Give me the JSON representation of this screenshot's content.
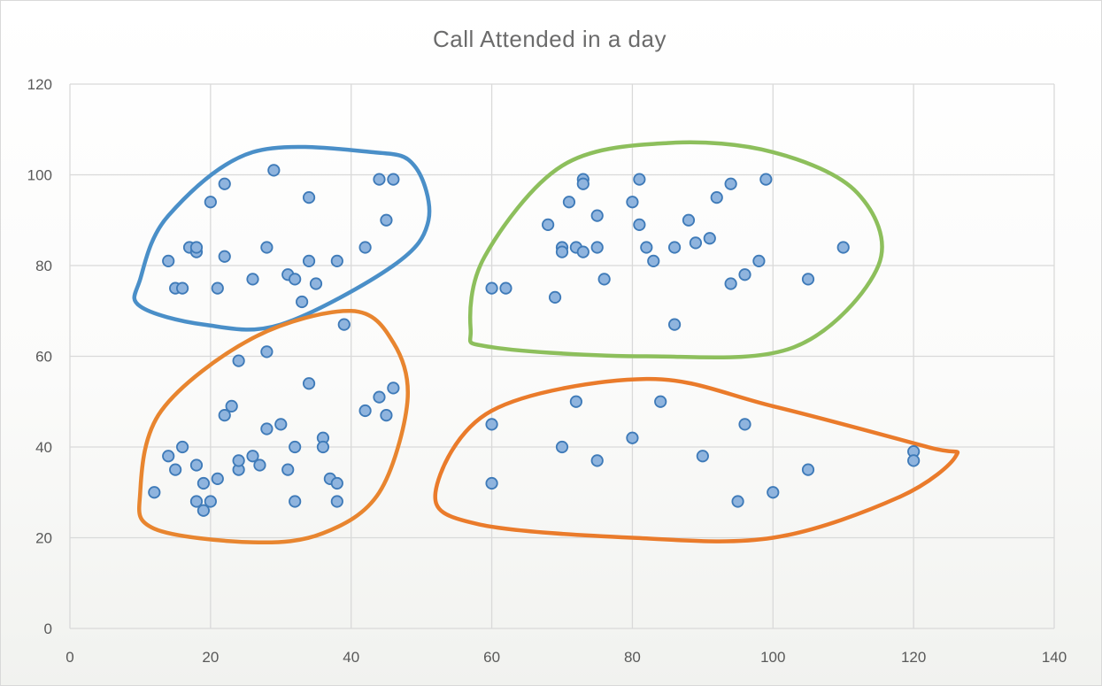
{
  "chart_data": {
    "type": "scatter",
    "title": "Call Attended in a day",
    "xlabel": "",
    "ylabel": "",
    "xlim": [
      0,
      140
    ],
    "ylim": [
      0,
      120
    ],
    "xticks": [
      0,
      20,
      40,
      60,
      80,
      100,
      120,
      140
    ],
    "yticks": [
      0,
      20,
      40,
      60,
      80,
      100,
      120
    ],
    "grid": true,
    "legend": "none",
    "marker_fill": "#8fb4de",
    "marker_edge": "#3e7ab8",
    "series": [
      {
        "points": [
          [
            14,
            81
          ],
          [
            15,
            75
          ],
          [
            16,
            75
          ],
          [
            17,
            84
          ],
          [
            18,
            83
          ],
          [
            18,
            84
          ],
          [
            20,
            94
          ],
          [
            21,
            75
          ],
          [
            22,
            98
          ],
          [
            22,
            82
          ],
          [
            26,
            77
          ],
          [
            28,
            84
          ],
          [
            29,
            101
          ],
          [
            31,
            78
          ],
          [
            32,
            77
          ],
          [
            33,
            72
          ],
          [
            34,
            95
          ],
          [
            34,
            81
          ],
          [
            35,
            76
          ],
          [
            38,
            81
          ],
          [
            42,
            84
          ],
          [
            44,
            99
          ],
          [
            45,
            90
          ],
          [
            46,
            99
          ],
          [
            39,
            67
          ],
          [
            12,
            30
          ],
          [
            14,
            38
          ],
          [
            15,
            35
          ],
          [
            16,
            40
          ],
          [
            18,
            36
          ],
          [
            18,
            28
          ],
          [
            19,
            26
          ],
          [
            19,
            32
          ],
          [
            20,
            28
          ],
          [
            21,
            33
          ],
          [
            22,
            47
          ],
          [
            23,
            49
          ],
          [
            24,
            59
          ],
          [
            24,
            35
          ],
          [
            24,
            37
          ],
          [
            26,
            38
          ],
          [
            27,
            36
          ],
          [
            28,
            61
          ],
          [
            28,
            44
          ],
          [
            30,
            45
          ],
          [
            31,
            35
          ],
          [
            32,
            40
          ],
          [
            32,
            28
          ],
          [
            34,
            54
          ],
          [
            36,
            42
          ],
          [
            36,
            40
          ],
          [
            37,
            33
          ],
          [
            38,
            32
          ],
          [
            38,
            28
          ],
          [
            42,
            48
          ],
          [
            44,
            51
          ],
          [
            45,
            47
          ],
          [
            46,
            53
          ],
          [
            60,
            75
          ],
          [
            62,
            75
          ],
          [
            68,
            89
          ],
          [
            69,
            73
          ],
          [
            70,
            84
          ],
          [
            70,
            83
          ],
          [
            71,
            94
          ],
          [
            72,
            84
          ],
          [
            73,
            99
          ],
          [
            73,
            98
          ],
          [
            73,
            83
          ],
          [
            75,
            91
          ],
          [
            75,
            84
          ],
          [
            76,
            77
          ],
          [
            80,
            94
          ],
          [
            81,
            99
          ],
          [
            81,
            89
          ],
          [
            82,
            84
          ],
          [
            83,
            81
          ],
          [
            86,
            84
          ],
          [
            86,
            67
          ],
          [
            88,
            90
          ],
          [
            89,
            85
          ],
          [
            91,
            86
          ],
          [
            92,
            95
          ],
          [
            94,
            98
          ],
          [
            94,
            76
          ],
          [
            96,
            78
          ],
          [
            98,
            81
          ],
          [
            99,
            99
          ],
          [
            105,
            77
          ],
          [
            110,
            84
          ],
          [
            60,
            45
          ],
          [
            60,
            32
          ],
          [
            70,
            40
          ],
          [
            72,
            50
          ],
          [
            75,
            37
          ],
          [
            80,
            42
          ],
          [
            84,
            50
          ],
          [
            90,
            38
          ],
          [
            95,
            28
          ],
          [
            96,
            45
          ],
          [
            100,
            30
          ],
          [
            105,
            35
          ],
          [
            120,
            39
          ],
          [
            120,
            37
          ]
        ]
      }
    ],
    "cluster_outlines": [
      {
        "color": "#4a8fc8",
        "path": [
          [
            10,
            77
          ],
          [
            14,
            91
          ],
          [
            26,
            105
          ],
          [
            43,
            105
          ],
          [
            49,
            102
          ],
          [
            51,
            90
          ],
          [
            46,
            80
          ],
          [
            30,
            67
          ],
          [
            19,
            67
          ],
          [
            10,
            71
          ]
        ]
      },
      {
        "color": "#8dbf5c",
        "path": [
          [
            57,
            66
          ],
          [
            59,
            82
          ],
          [
            70,
            102
          ],
          [
            85,
            107
          ],
          [
            100,
            105
          ],
          [
            112,
            96
          ],
          [
            115,
            80
          ],
          [
            103,
            62
          ],
          [
            82,
            60
          ],
          [
            60,
            62
          ]
        ]
      },
      {
        "color": "#e8852f",
        "path": [
          [
            10,
            30
          ],
          [
            13,
            48
          ],
          [
            26,
            64
          ],
          [
            40,
            70
          ],
          [
            46,
            63
          ],
          [
            48,
            50
          ],
          [
            44,
            30
          ],
          [
            36,
            21
          ],
          [
            26,
            19
          ],
          [
            12,
            22
          ]
        ]
      },
      {
        "color": "#ea7b2b",
        "path": [
          [
            52,
            30
          ],
          [
            60,
            48
          ],
          [
            82,
            55
          ],
          [
            100,
            49
          ],
          [
            122,
            40
          ],
          [
            126,
            38
          ],
          [
            118,
            29
          ],
          [
            100,
            20
          ],
          [
            80,
            20
          ],
          [
            58,
            23
          ]
        ]
      }
    ]
  }
}
